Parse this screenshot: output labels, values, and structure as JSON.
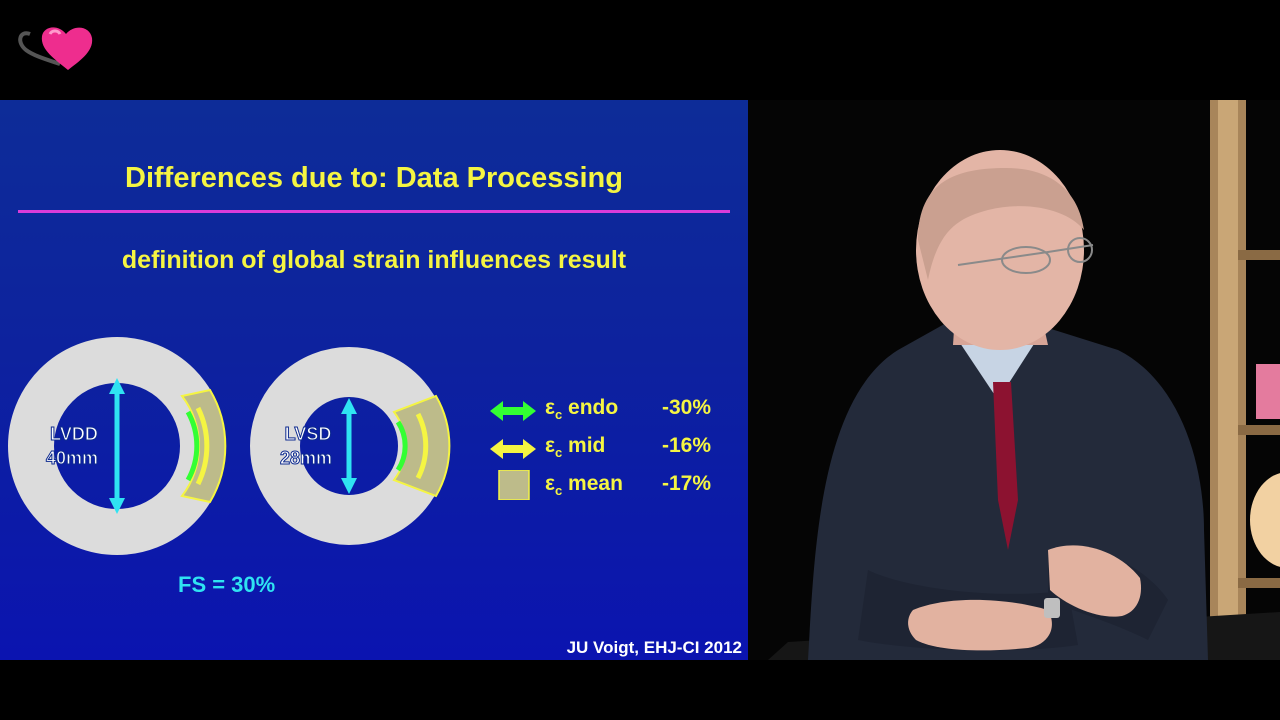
{
  "slide": {
    "title": "Differences due to: Data Processing",
    "subtitle": "definition of global strain influences result",
    "ring_left": {
      "label_line1": "LVDD",
      "label_line2": "40mm"
    },
    "ring_right": {
      "label_line1": "LVSD",
      "label_line2": "28mm"
    },
    "legend": [
      {
        "symbol": "green-double-arrow",
        "label": "ε",
        "sub": "c",
        "suffix": " endo",
        "value": "-30%"
      },
      {
        "symbol": "yellow-double-arrow",
        "label": "ε",
        "sub": "c",
        "suffix": " mid",
        "value": "-16%"
      },
      {
        "symbol": "mean-square",
        "label": "ε",
        "sub": "c",
        "suffix": " mean",
        "value": "-17%"
      }
    ],
    "fs_text": "FS = 30%",
    "citation": "JU Voigt, EHJ-CI 2012"
  },
  "colors": {
    "slide_text": "#f5f542",
    "divider": "#d93cd9",
    "cyan": "#2fe3f2",
    "green": "#33ff33",
    "ring": "#dcdcdc",
    "segment": "#bdbb8a"
  },
  "video": {
    "description_icon": "presenter-video"
  }
}
